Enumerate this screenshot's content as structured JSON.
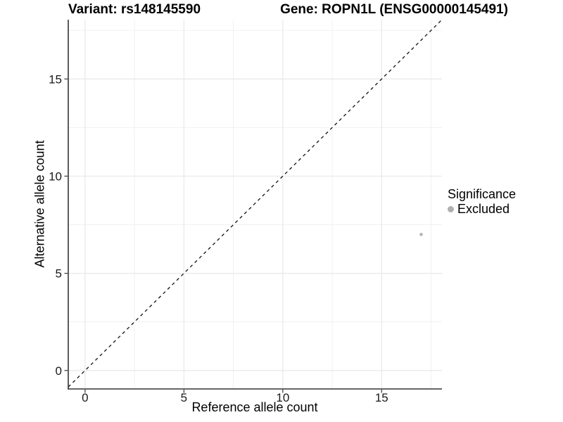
{
  "chart_data": {
    "type": "scatter",
    "title_left": "Variant: rs148145590",
    "title_right": "Gene: ROPN1L (ENSG00000145491)",
    "xlabel": "Reference allele count",
    "ylabel": "Alternative allele count",
    "xlim": [
      -0.85,
      18.05
    ],
    "ylim": [
      -0.95,
      18.05
    ],
    "x_ticks": [
      0,
      5,
      10,
      15
    ],
    "y_ticks": [
      0,
      5,
      10,
      15
    ],
    "x_minor_ticks": [
      2.5,
      7.5,
      12.5,
      17.5
    ],
    "y_minor_ticks": [
      2.5,
      7.5,
      12.5,
      17.5
    ],
    "grid": true,
    "legend_position": "right",
    "series": [
      {
        "name": "Excluded",
        "color": "#b4b4b4",
        "points": [
          {
            "x": 17,
            "y": 7
          }
        ]
      }
    ],
    "reference_line": {
      "type": "identity",
      "slope": 1,
      "intercept": 0,
      "style": "dashed",
      "color": "#111111"
    },
    "legend": {
      "title": "Significance",
      "items": [
        {
          "label": "Excluded",
          "color": "#b0b0b0"
        }
      ]
    },
    "style": {
      "background": "#ffffff",
      "grid_major_color": "#e8e8e8",
      "grid_minor_color": "#f1f1f1",
      "axis_line_color": "#333333",
      "tick_mark_color": "#333333",
      "tick_label_color": "#1a1a1a"
    }
  }
}
